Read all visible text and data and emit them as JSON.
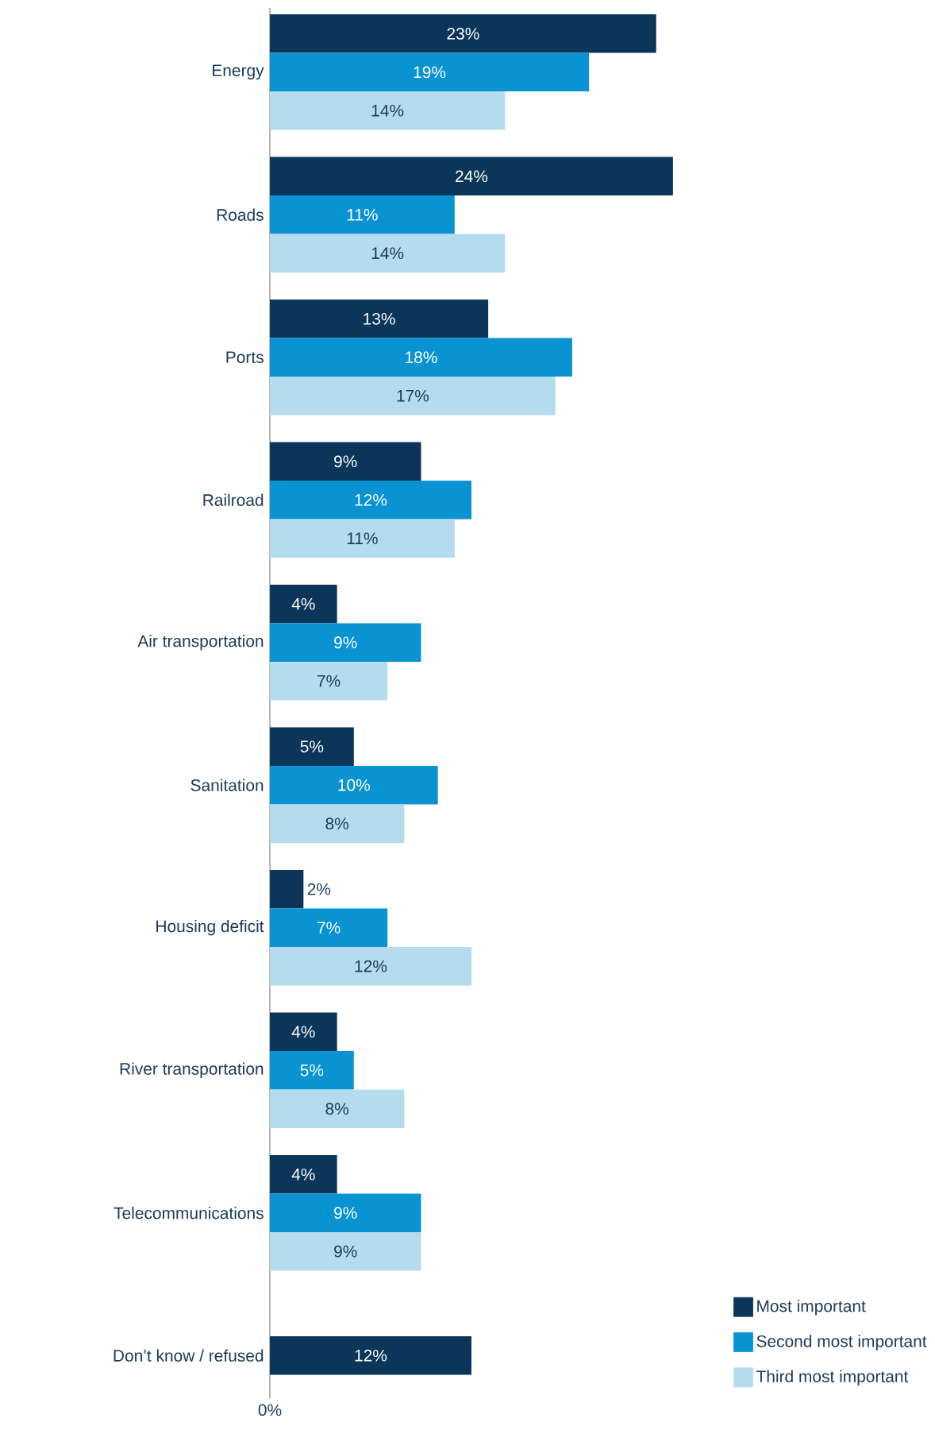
{
  "chart_data": {
    "type": "bar",
    "orientation": "horizontal",
    "categories": [
      "Energy",
      "Roads",
      "Ports",
      "Railroad",
      "Air transportation",
      "Sanitation",
      "Housing deficit",
      "River transportation",
      "Telecommunications",
      "Don’t know / refused"
    ],
    "series": [
      {
        "name": "Most important",
        "color": "#0b365a",
        "values": [
          23,
          24,
          13,
          9,
          4,
          5,
          2,
          4,
          4,
          12
        ],
        "value_labels": [
          "23%",
          "24%",
          "13%",
          "9%",
          "4%",
          "5%",
          "2%",
          "4%",
          "4%",
          "12%"
        ]
      },
      {
        "name": "Second most important",
        "color": "#0a93d2",
        "values": [
          19,
          11,
          18,
          12,
          9,
          10,
          7,
          5,
          9,
          null
        ],
        "value_labels": [
          "19%",
          "11%",
          "18%",
          "12%",
          "9%",
          "10%",
          "7%",
          "5%",
          "9%",
          null
        ]
      },
      {
        "name": "Third most important",
        "color": "#b5dcee",
        "values": [
          14,
          14,
          17,
          11,
          7,
          8,
          12,
          8,
          9,
          null
        ],
        "value_labels": [
          "14%",
          "14%",
          "17%",
          "11%",
          "7%",
          "8%",
          "12%",
          "8%",
          "9%",
          null
        ]
      }
    ],
    "annotations": [
      "0%"
    ],
    "legend": "bottom right",
    "grid": false
  }
}
